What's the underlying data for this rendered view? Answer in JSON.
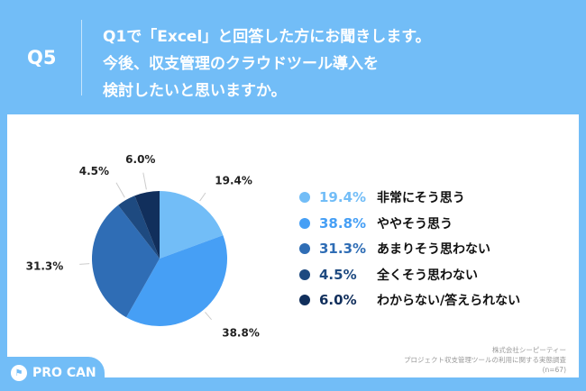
{
  "header": {
    "question_number": "Q5",
    "question_text": "Q1で「Excel」と回答した方にお聞きします。\n今後、収支管理のクラウドツール導入を\n検討したいと思いますか。"
  },
  "chart_data": {
    "type": "pie",
    "categories": [
      "非常にそう思う",
      "ややそう思う",
      "あまりそう思わない",
      "全くそう思わない",
      "わからない/答えられない"
    ],
    "values": [
      19.4,
      38.8,
      31.3,
      4.5,
      6.0
    ],
    "labels": [
      "19.4%",
      "38.8%",
      "31.3%",
      "4.5%",
      "6.0%"
    ],
    "colors": [
      "#72bdf7",
      "#469ff5",
      "#2f6db5",
      "#1e4a80",
      "#112f5c"
    ],
    "legend": "right"
  },
  "source": {
    "company": "株式会社シーピーティー",
    "survey": "プロジェクト収支管理ツールの利用に関する実態調査",
    "sample": "(n=67)"
  },
  "logo": {
    "text": "PRO CAN"
  }
}
